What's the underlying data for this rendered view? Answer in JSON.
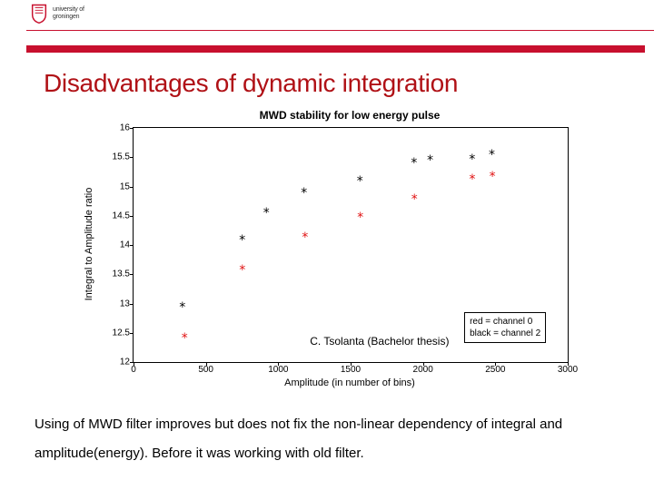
{
  "header": {
    "wordmark_line1": "university of",
    "wordmark_line2": "groningen"
  },
  "title": "Disadvantages of dynamic integration",
  "chart": {
    "type": "scatter",
    "title": "MWD stability for low energy pulse",
    "xlabel": "Amplitude (in number of bins)",
    "ylabel": "Integral to Amplitude ratio",
    "xlim": [
      0,
      3000
    ],
    "ylim": [
      12,
      16
    ],
    "xticks": [
      0,
      500,
      1000,
      1500,
      2000,
      2500,
      3000
    ],
    "yticks": [
      12,
      12.5,
      13,
      13.5,
      14,
      14.5,
      15,
      15.5,
      16
    ],
    "marker_glyph": "*",
    "marker_fontsize": 14,
    "series": [
      {
        "name": "channel 0",
        "color": "#e01010",
        "points": [
          [
            353,
            12.41
          ],
          [
            752,
            13.57
          ],
          [
            1185,
            14.13
          ],
          [
            1567,
            14.46
          ],
          [
            1941,
            14.78
          ],
          [
            2341,
            15.11
          ],
          [
            2480,
            15.16
          ]
        ]
      },
      {
        "name": "channel 2",
        "color": "#000000",
        "points": [
          [
            338,
            12.93
          ],
          [
            751,
            14.08
          ],
          [
            918,
            14.54
          ],
          [
            1178,
            14.88
          ],
          [
            1564,
            15.09
          ],
          [
            1938,
            15.39
          ],
          [
            2050,
            15.44
          ],
          [
            2340,
            15.46
          ],
          [
            2476,
            15.54
          ]
        ]
      }
    ],
    "legend": {
      "lines": [
        {
          "text": "red = channel 0",
          "color": "#000000"
        },
        {
          "text": "black = channel 2",
          "color": "#000000"
        }
      ],
      "pos_data": {
        "x": 2285,
        "y": 12.85
      }
    },
    "credit": {
      "text": "C. Tsolanta (Bachelor thesis)",
      "pos_data": {
        "x": 1700,
        "y": 12.35
      }
    },
    "axis_border_color": "#000000",
    "background_color": "#ffffff"
  },
  "body": {
    "text": "Using of MWD filter improves but does not fix the non-linear dependency of integral and amplitude(energy). Before it was working with old filter."
  }
}
